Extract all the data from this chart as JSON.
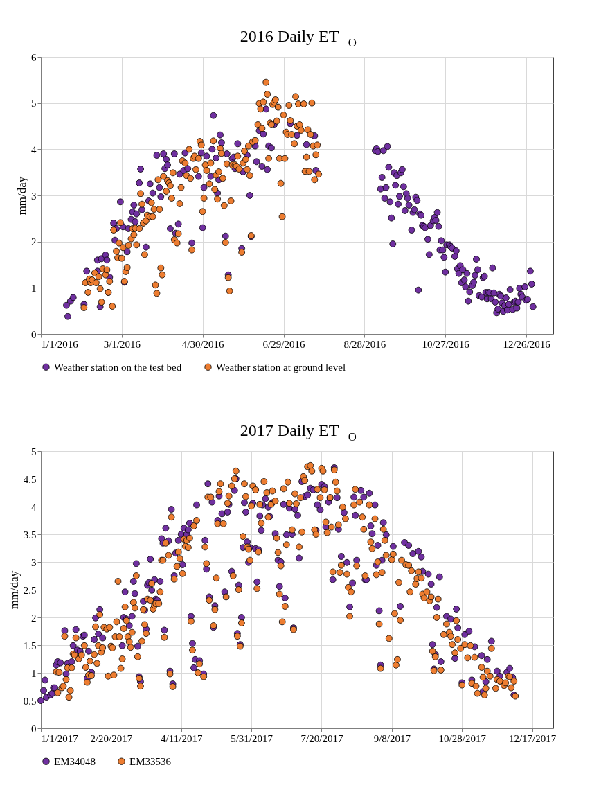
{
  "chart_data": [
    {
      "type": "scatter",
      "title": "2016 Daily ET$_{O}$",
      "ylabel": "mm/day",
      "legend": "bottom",
      "marker": "circle",
      "grid": true,
      "xlim": [
        "2016-01-01",
        "2017-01-15"
      ],
      "xticks": [
        {
          "value": "2016-01-01",
          "label": "1/1/2016"
        },
        {
          "value": "2016-03-01",
          "label": "3/1/2016"
        },
        {
          "value": "2016-04-30",
          "label": "4/30/2016"
        },
        {
          "value": "2016-06-29",
          "label": "6/29/2016"
        },
        {
          "value": "2016-08-28",
          "label": "8/28/2016"
        },
        {
          "value": "2016-10-27",
          "label": "10/27/2016"
        },
        {
          "value": "2016-12-26",
          "label": "12/26/2016"
        }
      ],
      "ylim": [
        0,
        6
      ],
      "yticks": [
        0,
        1,
        2,
        3,
        4,
        5,
        6
      ],
      "series": [
        {
          "name": "Weather station on the test bed",
          "color": "#7030a0",
          "x": [
            "2016-01-20",
            "2016-01-21",
            "2016-01-23",
            "2016-01-25",
            "2016-02-02",
            "2016-02-04",
            "2016-02-12",
            "2016-02-14",
            "2016-02-12",
            "2016-02-15",
            "2016-02-18",
            "2016-02-19",
            "2016-02-20",
            "2016-02-21",
            "2016-02-24",
            "2016-02-25",
            "2016-02-26",
            "2016-02-29",
            "2016-03-02",
            "2016-03-03",
            "2016-03-05",
            "2016-03-06",
            "2016-03-08",
            "2016-03-09",
            "2016-03-10",
            "2016-03-11",
            "2016-03-12",
            "2016-03-14",
            "2016-03-15",
            "2016-03-16",
            "2016-03-19",
            "2016-03-21",
            "2016-03-22",
            "2016-03-24",
            "2016-03-27",
            "2016-03-29",
            "2016-03-30",
            "2016-04-01",
            "2016-04-02",
            "2016-04-03",
            "2016-04-04",
            "2016-04-06",
            "2016-04-09",
            "2016-04-10",
            "2016-04-12",
            "2016-04-13",
            "2016-04-16",
            "2016-04-17",
            "2016-04-19",
            "2016-04-22",
            "2016-04-27",
            "2016-04-29",
            "2016-04-30",
            "2016-05-01",
            "2016-05-03",
            "2016-05-06",
            "2016-05-07",
            "2016-05-08",
            "2016-05-10",
            "2016-05-11",
            "2016-05-12",
            "2016-05-13",
            "2016-05-14",
            "2016-05-17",
            "2016-05-18",
            "2016-05-19",
            "2016-05-22",
            "2016-05-23",
            "2016-05-24",
            "2016-05-26",
            "2016-05-29",
            "2016-05-30",
            "2016-06-02",
            "2016-06-04",
            "2016-06-05",
            "2016-06-08",
            "2016-06-09",
            "2016-06-11",
            "2016-06-13",
            "2016-06-14",
            "2016-06-16",
            "2016-06-17",
            "2016-06-18",
            "2016-06-20",
            "2016-06-22",
            "2016-07-04",
            "2016-07-09",
            "2016-07-16",
            "2016-07-22",
            "2016-07-23",
            "2016-09-05",
            "2016-09-06",
            "2016-09-07",
            "2016-09-09",
            "2016-09-10",
            "2016-09-11",
            "2016-09-13",
            "2016-09-12",
            "2016-09-14",
            "2016-09-15",
            "2016-09-16",
            "2016-09-17",
            "2016-09-18",
            "2016-09-19",
            "2016-09-20",
            "2016-09-21",
            "2016-09-22",
            "2016-09-23",
            "2016-09-24",
            "2016-09-25",
            "2016-09-26",
            "2016-09-27",
            "2016-09-28",
            "2016-09-29",
            "2016-09-30",
            "2016-10-02",
            "2016-10-03",
            "2016-10-04",
            "2016-10-05",
            "2016-10-06",
            "2016-10-07",
            "2016-10-08",
            "2016-10-09",
            "2016-10-10",
            "2016-10-11",
            "2016-10-12",
            "2016-10-14",
            "2016-10-15",
            "2016-10-16",
            "2016-10-18",
            "2016-10-19",
            "2016-10-20",
            "2016-10-21",
            "2016-10-22",
            "2016-10-23",
            "2016-10-24",
            "2016-10-25",
            "2016-10-26",
            "2016-10-27",
            "2016-10-28",
            "2016-10-30",
            "2016-10-31",
            "2016-11-01",
            "2016-11-03",
            "2016-11-04",
            "2016-11-05",
            "2016-11-06",
            "2016-11-07",
            "2016-11-08",
            "2016-11-09",
            "2016-11-10",
            "2016-11-11",
            "2016-11-12",
            "2016-11-13",
            "2016-11-14",
            "2016-11-16",
            "2016-11-17",
            "2016-11-18",
            "2016-11-19",
            "2016-11-20",
            "2016-11-21",
            "2016-11-23",
            "2016-11-24",
            "2016-11-25",
            "2016-11-26",
            "2016-11-27",
            "2016-11-28",
            "2016-11-29",
            "2016-11-30",
            "2016-12-01",
            "2016-12-02",
            "2016-12-03",
            "2016-12-04",
            "2016-12-05",
            "2016-12-06",
            "2016-12-07",
            "2016-12-08",
            "2016-12-09",
            "2016-12-10",
            "2016-12-11",
            "2016-12-12",
            "2016-12-13",
            "2016-12-14",
            "2016-12-16",
            "2016-12-17",
            "2016-12-18",
            "2016-12-19",
            "2016-12-20",
            "2016-12-21",
            "2016-12-22",
            "2016-12-23",
            "2016-12-25",
            "2016-12-26",
            "2016-12-27",
            "2016-12-29",
            "2016-12-30",
            "2016-12-31"
          ],
          "values": [
            0.62,
            0.38,
            0.71,
            0.79,
            0.64,
            1.36,
            1.36,
            0.59,
            1.6,
            1.63,
            1.71,
            1.6,
            0.9,
            1.23,
            2.4,
            2.03,
            2.28,
            2.86,
            2.32,
            1.12,
            1.78,
            2.28,
            2.48,
            2.64,
            2.79,
            2.43,
            2.6,
            3.27,
            3.57,
            2.69,
            1.88,
            2.88,
            3.25,
            3.05,
            3.87,
            3.17,
            2.97,
            3.9,
            3.58,
            3.78,
            3.66,
            2.28,
            3.9,
            2.18,
            2.38,
            3.46,
            3.54,
            3.92,
            3.58,
            1.97,
            3.41,
            3.92,
            2.3,
            3.17,
            3.85,
            3.41,
            4.0,
            4.73,
            3.81,
            3.05,
            3.34,
            4.31,
            4.14,
            2.12,
            3.9,
            1.28,
            3.8,
            3.83,
            3.58,
            4.12,
            1.85,
            3.51,
            3.87,
            3.0,
            2.11,
            4.07,
            3.73,
            4.4,
            3.63,
            4.33,
            4.87,
            3.56,
            4.07,
            4.03,
            4.53,
            4.55,
            4.3,
            4.1,
            4.29,
            3.54,
            3.97,
            4.02,
            3.95,
            3.14,
            3.39,
            3.97,
            3.17,
            2.94,
            4.06,
            3.61,
            2.86,
            2.51,
            1.95,
            3.49,
            3.22,
            3.43,
            2.81,
            2.98,
            3.49,
            3.56,
            3.19,
            2.67,
            3.04,
            2.94,
            2.79,
            2.25,
            2.63,
            2.69,
            2.96,
            2.89,
            0.95,
            2.6,
            2.57,
            2.35,
            2.33,
            2.3,
            2.05,
            1.72,
            2.35,
            2.45,
            2.52,
            2.46,
            2.63,
            2.33,
            1.82,
            2.02,
            1.82,
            1.66,
            1.34,
            1.93,
            1.93,
            1.89,
            1.86,
            1.68,
            1.8,
            1.41,
            1.31,
            1.48,
            1.11,
            1.39,
            1.17,
            1.02,
            1.31,
            0.71,
            0.91,
            1.05,
            1.12,
            1.27,
            1.62,
            1.39,
            0.83,
            0.8,
            1.22,
            1.25,
            0.9,
            0.76,
            0.9,
            0.89,
            0.76,
            1.43,
            0.89,
            0.69,
            0.46,
            0.54,
            0.86,
            0.82,
            0.67,
            0.49,
            0.61,
            0.78,
            0.52,
            0.64,
            0.96,
            0.53,
            0.69,
            0.71,
            0.56,
            0.69,
            0.99,
            0.86,
            0.8,
            1.02,
            0.73,
            0.75,
            1.36,
            1.08,
            0.59
          ]
        },
        {
          "name": "Weather station at ground level",
          "color": "#ed7d31",
          "x": [
            "2016-02-02",
            "2016-02-03",
            "2016-02-05",
            "2016-02-06",
            "2016-02-07",
            "2016-02-08",
            "2016-02-10",
            "2016-02-11",
            "2016-02-13",
            "2016-02-14",
            "2016-02-15",
            "2016-02-16",
            "2016-02-18",
            "2016-02-19",
            "2016-02-20",
            "2016-02-21",
            "2016-02-23",
            "2016-02-24",
            "2016-02-26",
            "2016-02-27",
            "2016-02-28",
            "2016-02-29",
            "2016-03-01",
            "2016-03-02",
            "2016-03-03",
            "2016-03-04",
            "2016-03-05",
            "2016-03-06",
            "2016-03-08",
            "2016-03-09",
            "2016-03-10",
            "2016-03-11",
            "2016-03-12",
            "2016-03-14",
            "2016-03-15",
            "2016-03-16",
            "2016-03-17",
            "2016-03-18",
            "2016-03-19",
            "2016-03-20",
            "2016-03-22",
            "2016-03-23",
            "2016-03-24",
            "2016-03-25",
            "2016-03-26",
            "2016-03-27",
            "2016-03-28",
            "2016-03-29",
            "2016-03-30",
            "2016-03-31",
            "2016-04-01",
            "2016-04-03",
            "2016-04-04",
            "2016-04-05",
            "2016-04-06",
            "2016-04-07",
            "2016-04-08",
            "2016-04-09",
            "2016-04-11",
            "2016-04-12",
            "2016-04-13",
            "2016-04-14",
            "2016-04-15",
            "2016-04-17",
            "2016-04-18",
            "2016-04-20",
            "2016-04-21",
            "2016-04-22",
            "2016-04-23",
            "2016-04-24",
            "2016-04-25",
            "2016-04-27",
            "2016-04-28",
            "2016-04-29",
            "2016-04-30",
            "2016-05-01",
            "2016-05-02",
            "2016-05-03",
            "2016-05-05",
            "2016-05-06",
            "2016-05-08",
            "2016-05-09",
            "2016-05-10",
            "2016-05-11",
            "2016-05-12",
            "2016-05-13",
            "2016-05-14",
            "2016-05-15",
            "2016-05-16",
            "2016-05-17",
            "2016-05-18",
            "2016-05-19",
            "2016-05-20",
            "2016-05-21",
            "2016-05-22",
            "2016-05-24",
            "2016-05-25",
            "2016-05-26",
            "2016-05-27",
            "2016-05-29",
            "2016-05-30",
            "2016-05-31",
            "2016-06-01",
            "2016-06-02",
            "2016-06-03",
            "2016-06-04",
            "2016-06-05",
            "2016-06-06",
            "2016-06-08",
            "2016-06-10",
            "2016-06-11",
            "2016-06-12",
            "2016-06-13",
            "2016-06-14",
            "2016-06-16",
            "2016-06-17",
            "2016-06-18",
            "2016-06-19",
            "2016-06-20",
            "2016-06-21",
            "2016-06-22",
            "2016-06-23",
            "2016-06-24",
            "2016-06-25",
            "2016-06-26",
            "2016-06-27",
            "2016-06-28",
            "2016-06-29",
            "2016-06-30",
            "2016-07-01",
            "2016-07-02",
            "2016-07-03",
            "2016-07-04",
            "2016-07-05",
            "2016-07-07",
            "2016-07-08",
            "2016-07-09",
            "2016-07-10",
            "2016-07-11",
            "2016-07-12",
            "2016-07-14",
            "2016-07-15",
            "2016-07-16",
            "2016-07-17",
            "2016-07-18",
            "2016-07-19",
            "2016-07-20",
            "2016-07-21",
            "2016-07-22",
            "2016-07-23",
            "2016-07-24",
            "2016-07-25"
          ],
          "values": [
            0.57,
            1.11,
            0.9,
            1.19,
            1.11,
            1.17,
            1.32,
            1.11,
            1.24,
            0.98,
            0.69,
            1.41,
            1.28,
            1.39,
            0.9,
            1.14,
            0.6,
            2.25,
            1.79,
            1.65,
            1.97,
            2.41,
            1.64,
            1.87,
            1.14,
            1.35,
            1.44,
            1.92,
            2.06,
            2.28,
            2.15,
            2.29,
            1.93,
            2.28,
            3.04,
            2.81,
            2.4,
            1.72,
            2.45,
            2.57,
            2.54,
            2.84,
            2.54,
            2.7,
            1.06,
            0.88,
            3.34,
            2.7,
            1.43,
            1.28,
            3.41,
            3.09,
            3.32,
            3.27,
            3.21,
            2.94,
            3.49,
            2.04,
            1.97,
            2.17,
            2.82,
            3.17,
            3.75,
            3.7,
            3.43,
            4.0,
            3.37,
            1.82,
            3.8,
            3.85,
            3.56,
            3.8,
            4.17,
            4.09,
            2.65,
            2.94,
            3.66,
            3.54,
            3.25,
            3.7,
            4.18,
            3.13,
            3.44,
            2.92,
            3.51,
            4.02,
            3.91,
            3.37,
            2.78,
            1.98,
            3.68,
            1.22,
            0.93,
            2.88,
            3.66,
            3.66,
            3.63,
            3.85,
            3.57,
            1.77,
            3.7,
            3.96,
            3.78,
            3.56,
            4.07,
            3.43,
            2.13,
            4.16,
            4.19,
            4.53,
            4.99,
            4.87,
            4.45,
            5.02,
            5.45,
            5.19,
            3.8,
            4.57,
            4.53,
            4.97,
            5.02,
            5.07,
            4.61,
            4.91,
            3.8,
            3.26,
            2.54,
            4.74,
            3.8,
            4.37,
            4.32,
            4.95,
            4.62,
            4.32,
            4.12,
            5.14,
            4.5,
            4.98,
            4.53,
            4.41,
            4.98,
            3.52,
            3.83,
            4.42,
            3.52,
            4.32,
            5.0,
            4.07,
            3.34,
            3.88,
            4.09,
            3.46
          ]
        }
      ]
    },
    {
      "type": "scatter",
      "title": "2017 Daily ET$_{O}$",
      "ylabel": "mm/day",
      "legend": "bottom",
      "marker": "circle",
      "grid": true,
      "xlim": [
        "2017-01-01",
        "2018-01-01"
      ],
      "xticks": [
        {
          "value": "2017-01-01",
          "label": "1/1/2017"
        },
        {
          "value": "2017-02-20",
          "label": "2/20/2017"
        },
        {
          "value": "2017-04-11",
          "label": "4/11/2017"
        },
        {
          "value": "2017-05-31",
          "label": "5/31/2017"
        },
        {
          "value": "2017-07-20",
          "label": "7/20/2017"
        },
        {
          "value": "2017-09-08",
          "label": "9/8/2017"
        },
        {
          "value": "2017-10-28",
          "label": "10/28/2017"
        },
        {
          "value": "2017-12-17",
          "label": "12/17/2017"
        }
      ],
      "ylim": [
        0,
        5
      ],
      "yticks": [
        0,
        0.5,
        1,
        1.5,
        2,
        2.5,
        3,
        3.5,
        4,
        4.5,
        5
      ],
      "series": [
        {
          "name": "EM34048",
          "color": "#7030a0",
          "x": [
            "2017-01-01",
            "2017-01-03",
            "2017-01-04",
            "2017-01-05",
            "2017-01-08",
            "2017-01-09",
            "2017-01-10",
            "2017-01-11",
            "2017-01-12",
            "2017-01-13",
            "2017-01-15",
            "2017-01-18",
            "2017-01-19",
            "2017-01-20",
            "2017-01-23",
            "2017-01-24",
            "2017-01-26",
            "2017-01-27",
            "2017-01-29",
            "2017-01-31",
            "2017-02-01",
            "2017-02-03",
            "2017-02-04",
            "2017-02-06",
            "2017-02-08",
            "2017-02-09",
            "2017-02-11",
            "2017-02-12",
            "2017-02-14",
            "2017-02-28",
            "2017-03-01",
            "2017-03-02",
            "2017-03-03",
            "2017-03-05",
            "2017-03-07",
            "2017-03-08",
            "2017-03-09",
            "2017-03-10",
            "2017-03-11",
            "2017-03-12",
            "2017-03-13",
            "2017-03-15",
            "2017-03-16",
            "2017-03-17",
            "2017-03-18",
            "2017-03-19",
            "2017-03-20",
            "2017-03-21",
            "2017-03-23",
            "2017-03-24",
            "2017-03-25",
            "2017-03-27",
            "2017-03-28",
            "2017-03-29",
            "2017-03-30",
            "2017-03-31",
            "2017-04-02",
            "2017-04-03",
            "2017-04-04",
            "2017-04-05",
            "2017-04-06",
            "2017-04-07",
            "2017-04-09",
            "2017-04-11",
            "2017-04-12",
            "2017-04-13",
            "2017-04-15",
            "2017-04-16",
            "2017-04-17",
            "2017-04-18",
            "2017-04-19",
            "2017-04-20",
            "2017-04-21",
            "2017-04-22",
            "2017-04-24",
            "2017-04-27",
            "2017-04-28",
            "2017-04-29",
            "2017-04-30",
            "2017-05-01",
            "2017-05-03",
            "2017-05-04",
            "2017-05-05",
            "2017-05-07",
            "2017-05-08",
            "2017-05-10",
            "2017-05-12",
            "2017-05-14",
            "2017-05-15",
            "2017-05-17",
            "2017-05-19",
            "2017-05-20",
            "2017-05-21",
            "2017-05-22",
            "2017-05-23",
            "2017-05-24",
            "2017-05-25",
            "2017-05-26",
            "2017-05-27",
            "2017-05-28",
            "2017-05-29",
            "2017-05-30",
            "2017-06-01",
            "2017-06-03",
            "2017-06-04",
            "2017-06-05",
            "2017-06-06",
            "2017-06-07",
            "2017-06-08",
            "2017-06-10",
            "2017-06-12",
            "2017-06-13",
            "2017-06-15",
            "2017-06-17",
            "2017-06-19",
            "2017-06-20",
            "2017-06-21",
            "2017-06-23",
            "2017-06-24",
            "2017-06-25",
            "2017-06-27",
            "2017-06-29",
            "2017-06-30",
            "2017-07-01",
            "2017-07-03",
            "2017-07-04",
            "2017-07-06",
            "2017-07-08",
            "2017-07-10",
            "2017-07-12",
            "2017-07-14",
            "2017-07-16",
            "2017-07-17",
            "2017-07-19",
            "2017-07-20",
            "2017-07-22",
            "2017-07-23",
            "2017-07-25",
            "2017-07-26",
            "2017-07-28",
            "2017-07-29",
            "2017-07-31",
            "2017-08-01",
            "2017-08-03",
            "2017-08-05",
            "2017-08-07",
            "2017-08-09",
            "2017-08-11",
            "2017-08-12",
            "2017-08-13",
            "2017-08-14",
            "2017-08-17",
            "2017-08-19",
            "2017-08-20",
            "2017-08-21",
            "2017-08-23",
            "2017-08-24",
            "2017-08-25",
            "2017-08-27",
            "2017-08-28",
            "2017-08-29",
            "2017-08-30",
            "2017-08-31",
            "2017-09-01",
            "2017-09-02",
            "2017-09-04",
            "2017-09-09",
            "2017-09-14",
            "2017-09-17",
            "2017-09-20",
            "2017-09-23",
            "2017-09-27",
            "2017-09-29",
            "2017-09-30",
            "2017-10-04",
            "2017-10-06",
            "2017-10-07",
            "2017-10-08",
            "2017-10-09",
            "2017-10-10",
            "2017-10-12",
            "2017-10-13",
            "2017-10-17",
            "2017-10-20",
            "2017-10-23",
            "2017-10-24",
            "2017-10-25",
            "2017-10-28",
            "2017-10-30",
            "2017-11-02",
            "2017-11-04",
            "2017-11-06",
            "2017-11-11",
            "2017-11-12",
            "2017-11-14",
            "2017-11-15",
            "2017-11-18",
            "2017-11-22",
            "2017-11-24",
            "2017-11-29",
            "2017-12-01",
            "2017-12-03",
            "2017-12-04"
          ],
          "values": [
            0.5,
            0.68,
            0.87,
            0.56,
            0.6,
            0.63,
            0.73,
            0.73,
            1.14,
            1.2,
            1.18,
            1.76,
            0.98,
            1.17,
            1.2,
            1.49,
            1.78,
            1.41,
            1.39,
            1.66,
            1.68,
            0.9,
            1.39,
            1.01,
            1.6,
            1.99,
            1.7,
            2.14,
            1.63,
            1.49,
            2.0,
            2.46,
            1.97,
            1.85,
            2.02,
            2.65,
            2.43,
            2.97,
            1.48,
            0.93,
            0.84,
            2.29,
            2.13,
            1.79,
            2.58,
            2.63,
            3.05,
            2.49,
            2.68,
            2.33,
            2.31,
            2.65,
            3.42,
            3.34,
            1.77,
            3.61,
            3.38,
            1.03,
            3.95,
            0.8,
            2.75,
            3.16,
            3.39,
            3.5,
            2.95,
            3.61,
            3.5,
            3.58,
            3.7,
            2.02,
            1.53,
            1.09,
            1.24,
            4.03,
            1.22,
            0.98,
            3.39,
            2.87,
            4.41,
            2.37,
            4.08,
            1.82,
            2.21,
            3.75,
            4.19,
            3.87,
            2.46,
            3.9,
            4.04,
            2.83,
            4.29,
            4.5,
            1.71,
            2.58,
            1.51,
            2.0,
            3.26,
            4.07,
            3.9,
            3.36,
            2.99,
            3.26,
            4.06,
            3.24,
            2.64,
            3.22,
            3.83,
            3.57,
            4.03,
            4.14,
            3.99,
            3.82,
            4.07,
            3.51,
            3.03,
            2.56,
            3.0,
            4.04,
            2.35,
            3.49,
            3.97,
            3.5,
            1.81,
            3.95,
            3.84,
            3.07,
            4.45,
            4.18,
            4.21,
            4.33,
            4.3,
            3.57,
            4.03,
            3.94,
            4.4,
            4.36,
            3.63,
            4.08,
            4.16,
            2.68,
            4.7,
            4.16,
            3.59,
            3.1,
            3.89,
            2.99,
            2.19,
            2.62,
            4.17,
            3.84,
            3.03,
            4.29,
            4.17,
            2.68,
            2.68,
            4.24,
            3.65,
            3.51,
            4.03,
            2.94,
            3.3,
            2.12,
            1.14,
            3.03,
            3.71,
            3.49,
            3.28,
            2.2,
            3.35,
            3.3,
            3.15,
            3.19,
            3.09,
            2.83,
            2.78,
            2.6,
            1.51,
            1.07,
            1.33,
            2.18,
            2.73,
            1.2,
            2.02,
            1.97,
            1.26,
            2.15,
            1.81,
            0.82,
            1.69,
            1.75,
            0.87,
            1.47,
            1.31,
            0.66,
            0.84,
            1.24,
            1.57,
            1.03,
            0.94,
            1.01,
            1.08,
            0.92,
            0.6
          ]
        },
        {
          "name": "EM33536",
          "color": "#ed7d31",
          "x": [
            "2017-01-12",
            "2017-01-13",
            "2017-01-14",
            "2017-01-16",
            "2017-01-17",
            "2017-01-18",
            "2017-01-19",
            "2017-01-20",
            "2017-01-21",
            "2017-01-22",
            "2017-01-23",
            "2017-01-24",
            "2017-01-25",
            "2017-01-26",
            "2017-01-28",
            "2017-01-30",
            "2017-02-01",
            "2017-02-02",
            "2017-02-03",
            "2017-02-04",
            "2017-02-05",
            "2017-02-06",
            "2017-02-08",
            "2017-02-09",
            "2017-02-10",
            "2017-02-11",
            "2017-02-12",
            "2017-02-13",
            "2017-02-14",
            "2017-02-15",
            "2017-02-17",
            "2017-02-18",
            "2017-02-19",
            "2017-02-20",
            "2017-02-21",
            "2017-02-22",
            "2017-02-23",
            "2017-02-24",
            "2017-02-25",
            "2017-02-26",
            "2017-02-27",
            "2017-02-28",
            "2017-03-01",
            "2017-03-02",
            "2017-03-03",
            "2017-03-04",
            "2017-03-05",
            "2017-03-06",
            "2017-03-07",
            "2017-03-08",
            "2017-03-09",
            "2017-03-10",
            "2017-03-11",
            "2017-03-12",
            "2017-03-13",
            "2017-03-14",
            "2017-03-15",
            "2017-03-16",
            "2017-03-17",
            "2017-03-18",
            "2017-03-20",
            "2017-03-21",
            "2017-03-22",
            "2017-03-23",
            "2017-03-24",
            "2017-03-26",
            "2017-03-27",
            "2017-03-28",
            "2017-03-29",
            "2017-03-30",
            "2017-03-31",
            "2017-04-02",
            "2017-04-03",
            "2017-04-04",
            "2017-04-05",
            "2017-04-06",
            "2017-04-08",
            "2017-04-09",
            "2017-04-10",
            "2017-04-12",
            "2017-04-13",
            "2017-04-14",
            "2017-04-15",
            "2017-04-16",
            "2017-04-17",
            "2017-04-18",
            "2017-04-19",
            "2017-04-20",
            "2017-04-22",
            "2017-04-23",
            "2017-04-24",
            "2017-04-27",
            "2017-04-28",
            "2017-04-29",
            "2017-04-30",
            "2017-05-01",
            "2017-05-02",
            "2017-05-04",
            "2017-05-05",
            "2017-05-06",
            "2017-05-07",
            "2017-05-08",
            "2017-05-09",
            "2017-05-11",
            "2017-05-13",
            "2017-05-14",
            "2017-05-15",
            "2017-05-17",
            "2017-05-18",
            "2017-05-19",
            "2017-05-20",
            "2017-05-21",
            "2017-05-22",
            "2017-05-23",
            "2017-05-24",
            "2017-05-25",
            "2017-05-26",
            "2017-05-27",
            "2017-05-28",
            "2017-05-29",
            "2017-05-30",
            "2017-05-31",
            "2017-06-01",
            "2017-06-03",
            "2017-06-04",
            "2017-06-05",
            "2017-06-06",
            "2017-06-07",
            "2017-06-09",
            "2017-06-11",
            "2017-06-12",
            "2017-06-14",
            "2017-06-15",
            "2017-06-17",
            "2017-06-18",
            "2017-06-19",
            "2017-06-20",
            "2017-06-21",
            "2017-06-22",
            "2017-06-23",
            "2017-06-24",
            "2017-06-25",
            "2017-06-26",
            "2017-06-27",
            "2017-06-29",
            "2017-06-30",
            "2017-07-01",
            "2017-07-02",
            "2017-07-04",
            "2017-07-05",
            "2017-07-06",
            "2017-07-07",
            "2017-07-08",
            "2017-07-10",
            "2017-07-12",
            "2017-07-13",
            "2017-07-15",
            "2017-07-16",
            "2017-07-17",
            "2017-07-19",
            "2017-07-20",
            "2017-07-21",
            "2017-07-22",
            "2017-07-23",
            "2017-07-24",
            "2017-07-26",
            "2017-07-27",
            "2017-07-28",
            "2017-07-29",
            "2017-07-30",
            "2017-07-31",
            "2017-08-01",
            "2017-08-02",
            "2017-08-03",
            "2017-08-04",
            "2017-08-06",
            "2017-08-07",
            "2017-08-08",
            "2017-08-09",
            "2017-08-10",
            "2017-08-12",
            "2017-08-13",
            "2017-08-14",
            "2017-08-16",
            "2017-08-18",
            "2017-08-19",
            "2017-08-20",
            "2017-08-23",
            "2017-08-24",
            "2017-08-25",
            "2017-08-27",
            "2017-08-28",
            "2017-08-29",
            "2017-08-30",
            "2017-08-31",
            "2017-09-01",
            "2017-09-02",
            "2017-09-03",
            "2017-09-04",
            "2017-09-06",
            "2017-09-08",
            "2017-09-09",
            "2017-09-10",
            "2017-09-11",
            "2017-09-12",
            "2017-09-13",
            "2017-09-14",
            "2017-09-15",
            "2017-09-18",
            "2017-09-20",
            "2017-09-21",
            "2017-09-22",
            "2017-09-25",
            "2017-09-26",
            "2017-09-27",
            "2017-09-29",
            "2017-09-30",
            "2017-10-01",
            "2017-10-03",
            "2017-10-05",
            "2017-10-06",
            "2017-10-07",
            "2017-10-08",
            "2017-10-09",
            "2017-10-10",
            "2017-10-11",
            "2017-10-13",
            "2017-10-15",
            "2017-10-17",
            "2017-10-19",
            "2017-10-20",
            "2017-10-21",
            "2017-10-23",
            "2017-10-24",
            "2017-10-25",
            "2017-10-27",
            "2017-10-28",
            "2017-10-30",
            "2017-11-01",
            "2017-11-03",
            "2017-11-04",
            "2017-11-06",
            "2017-11-07",
            "2017-11-08",
            "2017-11-11",
            "2017-11-12",
            "2017-11-13",
            "2017-11-14",
            "2017-11-15",
            "2017-11-17",
            "2017-11-18",
            "2017-11-21",
            "2017-11-22",
            "2017-11-24",
            "2017-11-27",
            "2017-11-28",
            "2017-11-30",
            "2017-12-01",
            "2017-12-02",
            "2017-12-04",
            "2017-12-05"
          ],
          "values": [
            1.02,
            0.64,
            1.01,
            0.73,
            0.76,
            1.66,
            0.88,
            1.09,
            0.56,
            0.68,
            1.09,
            1.34,
            1.32,
            1.63,
            1.25,
            1.32,
            1.49,
            1.1,
            0.83,
            0.96,
            1.21,
            0.95,
            1.33,
            1.83,
            1.17,
            1.49,
            2.05,
            1.37,
            1.45,
            1.82,
            1.79,
            0.94,
            1.82,
            1.48,
            1.45,
            0.96,
            1.65,
            1.92,
            2.65,
            1.65,
            1.08,
            1.25,
            1.8,
            2.19,
            1.94,
            1.65,
            1.56,
            1.46,
            1.73,
            2.27,
            2.17,
            2.75,
            1.29,
            0.9,
            0.76,
            1.57,
            2.14,
            1.87,
            1.71,
            2.33,
            2.31,
            2.61,
            2.15,
            2.22,
            2.25,
            2.25,
            2.46,
            3.03,
            3.03,
            1.64,
            3.34,
            3.12,
            0.98,
            3.81,
            0.75,
            2.69,
            2.92,
            3.18,
            3.06,
            2.79,
            3.41,
            3.28,
            3.39,
            3.26,
            3.43,
            1.93,
            1.41,
            3.65,
            3.75,
            1.0,
            1.16,
            0.93,
            3.27,
            2.97,
            4.17,
            2.31,
            4.17,
            1.85,
            2.14,
            2.71,
            3.69,
            4.27,
            4.41,
            3.69,
            2.37,
            4.06,
            4.19,
            4.37,
            2.75,
            4.5,
            4.64,
            1.66,
            2.5,
            1.48,
            1.9,
            3.46,
            4.41,
            4.18,
            3.27,
            3.23,
            3.03,
            4.01,
            4.37,
            4.3,
            2.52,
            3.18,
            4.04,
            3.7,
            4.45,
            4.25,
            3.81,
            4.04,
            4.28,
            4.1,
            3.43,
            3.17,
            2.42,
            2.93,
            1.92,
            4.32,
            2.2,
            3.31,
            4.44,
            4.06,
            3.58,
            1.78,
            4.23,
            4.05,
            3.27,
            4.16,
            3.54,
            4.54,
            4.47,
            4.72,
            4.74,
            4.64,
            3.58,
            3.5,
            4.31,
            4.16,
            4.69,
            4.64,
            4.3,
            3.72,
            3.53,
            4.16,
            3.63,
            2.82,
            4.66,
            4.44,
            4.28,
            3.67,
            2.81,
            2.94,
            3.99,
            3.78,
            2.78,
            2.54,
            2.02,
            2.46,
            4.03,
            4.31,
            2.93,
            4.08,
            3.81,
            3.59,
            2.75,
            4.03,
            3.36,
            3.24,
            3.78,
            2.77,
            3.0,
            1.88,
            1.08,
            2.81,
            3.59,
            3.39,
            3.12,
            1.62,
            3.04,
            3.14,
            2.07,
            1.14,
            1.24,
            2.63,
            1.95,
            3.03,
            2.95,
            2.94,
            2.46,
            2.84,
            2.6,
            2.7,
            2.82,
            2.71,
            2.42,
            2.35,
            2.46,
            2.3,
            2.37,
            1.39,
            1.04,
            1.29,
            2.0,
            2.33,
            1.05,
            1.69,
            1.88,
            1.73,
            1.66,
            1.51,
            1.36,
            1.94,
            1.6,
            1.44,
            0.78,
            1.51,
            1.27,
            1.49,
            0.81,
            1.28,
            0.76,
            0.63,
            1.1,
            0.92,
            0.6,
            0.72,
            1.03,
            0.94,
            1.44,
            0.72,
            0.88,
            0.85,
            0.77,
            0.82,
            0.94,
            0.93,
            0.73,
            0.85,
            0.58
          ]
        }
      ]
    }
  ]
}
